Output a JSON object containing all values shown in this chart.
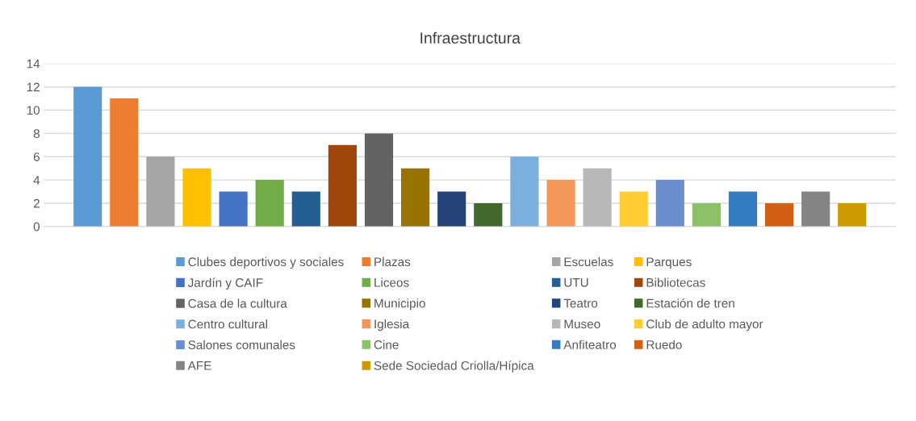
{
  "chart_data": {
    "type": "bar",
    "title": "Infraestructura",
    "categories": [
      null
    ],
    "series": [
      {
        "name": "Clubes deportivos y sociales",
        "color": "#5b9bd5",
        "values": [
          12
        ]
      },
      {
        "name": "Plazas",
        "color": "#ed7d31",
        "values": [
          11
        ]
      },
      {
        "name": "Escuelas",
        "color": "#a5a5a5",
        "values": [
          6
        ]
      },
      {
        "name": "Parques",
        "color": "#ffc000",
        "values": [
          5
        ]
      },
      {
        "name": "Jardín y CAIF",
        "color": "#4472c4",
        "values": [
          3
        ]
      },
      {
        "name": "Liceos",
        "color": "#70ad47",
        "values": [
          4
        ]
      },
      {
        "name": "UTU",
        "color": "#255e91",
        "values": [
          3
        ]
      },
      {
        "name": "Bibliotecas",
        "color": "#9e480e",
        "values": [
          7
        ]
      },
      {
        "name": "Casa de la cultura",
        "color": "#636363",
        "values": [
          8
        ]
      },
      {
        "name": "Municipio",
        "color": "#997300",
        "values": [
          5
        ]
      },
      {
        "name": "Teatro",
        "color": "#264478",
        "values": [
          3
        ]
      },
      {
        "name": "Estación de tren",
        "color": "#43682b",
        "values": [
          2
        ]
      },
      {
        "name": "Centro cultural",
        "color": "#7cafdd",
        "values": [
          6
        ]
      },
      {
        "name": "Iglesia",
        "color": "#f1975a",
        "values": [
          4
        ]
      },
      {
        "name": "Museo",
        "color": "#b7b7b7",
        "values": [
          5
        ]
      },
      {
        "name": "Club de adulto mayor",
        "color": "#ffcd33",
        "values": [
          3
        ]
      },
      {
        "name": "Salones comunales",
        "color": "#698ed0",
        "values": [
          4
        ]
      },
      {
        "name": "Cine",
        "color": "#8cc168",
        "values": [
          2
        ]
      },
      {
        "name": "Anfiteatro",
        "color": "#327dc2",
        "values": [
          3
        ]
      },
      {
        "name": "Ruedo",
        "color": "#d26012",
        "values": [
          2
        ]
      },
      {
        "name": "AFE",
        "color": "#848484",
        "values": [
          3
        ]
      },
      {
        "name": "Sede Sociedad Criolla/Hípica",
        "color": "#cc9a00",
        "values": [
          2
        ]
      }
    ],
    "ylim": [
      0,
      14
    ],
    "yticks": [
      0,
      2,
      4,
      6,
      8,
      10,
      12,
      14
    ],
    "grid": "y",
    "legend": "bottom"
  }
}
